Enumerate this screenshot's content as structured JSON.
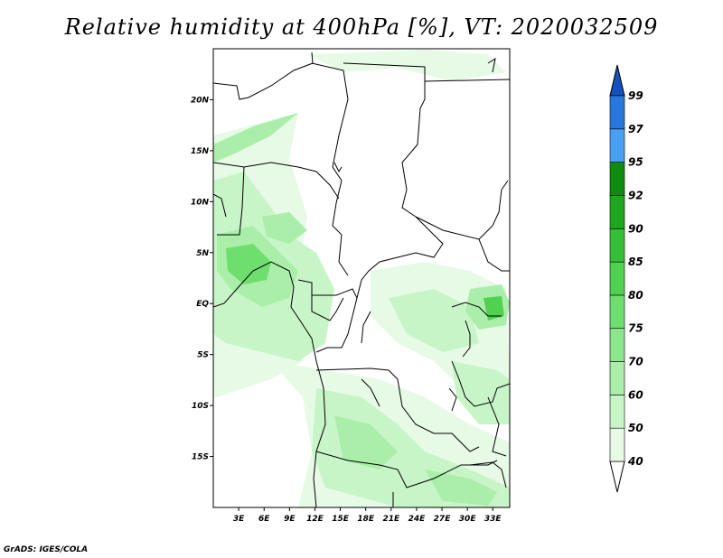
{
  "title": "Relative humidity at 400hPa [%], VT: 2020032509",
  "credit": "GrADS: IGES/COLA",
  "map": {
    "lat_ticks": [
      "20N",
      "15N",
      "10N",
      "5N",
      "EQ",
      "5S",
      "10S",
      "15S"
    ],
    "lat_values": [
      20,
      15,
      10,
      5,
      0,
      -5,
      -10,
      -15
    ],
    "lon_ticks": [
      "3E",
      "6E",
      "9E",
      "12E",
      "15E",
      "18E",
      "21E",
      "24E",
      "27E",
      "30E",
      "33E"
    ],
    "lon_values": [
      3,
      6,
      9,
      12,
      15,
      18,
      21,
      24,
      27,
      30,
      33
    ],
    "lon_range": [
      0,
      35
    ],
    "lat_range": [
      -20,
      25
    ]
  },
  "colorbar": {
    "levels": [
      "40",
      "50",
      "60",
      "70",
      "75",
      "80",
      "85",
      "90",
      "92",
      "95",
      "97",
      "99"
    ],
    "colors": [
      "#ffffff",
      "#e6fae6",
      "#c8f5c8",
      "#aaeeaa",
      "#8ce68c",
      "#6ede6e",
      "#50d250",
      "#37be37",
      "#1fa51f",
      "#0f8c0f",
      "#4aa0f0",
      "#2878dc",
      "#1450be"
    ]
  }
}
